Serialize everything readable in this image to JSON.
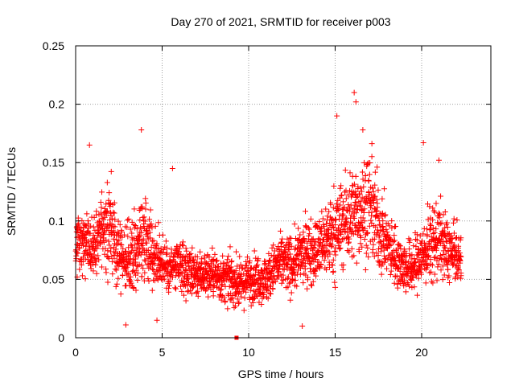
{
  "chart_data": {
    "type": "scatter",
    "title": "Day 270 of 2021, SRMTID for receiver p003",
    "xlabel": "GPS time / hours",
    "ylabel": "SRMTID / TECUs",
    "xlim": [
      0,
      24
    ],
    "ylim": [
      0,
      0.25
    ],
    "x_ticks": [
      0,
      5,
      10,
      15,
      20
    ],
    "x_tick_labels": [
      "0",
      "5",
      "10",
      "15",
      "20"
    ],
    "y_ticks": [
      0,
      0.05,
      0.1,
      0.15,
      0.2,
      0.25
    ],
    "y_tick_labels": [
      "0",
      "0.05",
      "0.1",
      "0.15",
      "0.2",
      "0.25"
    ],
    "grid": true,
    "marker": "plus",
    "color": "#ff0000",
    "outlier_marker": "square",
    "outlier_points": [
      [
        9.3,
        0.0
      ]
    ],
    "profile": {
      "x": [
        0.0,
        0.5,
        1.0,
        1.5,
        2.0,
        2.5,
        3.0,
        3.5,
        4.0,
        4.5,
        5.0,
        5.5,
        6.0,
        6.5,
        7.0,
        7.5,
        8.0,
        8.5,
        9.0,
        9.5,
        10.0,
        10.5,
        11.0,
        11.5,
        12.0,
        12.5,
        13.0,
        13.5,
        14.0,
        14.5,
        15.0,
        15.5,
        16.0,
        16.5,
        17.0,
        17.5,
        18.0,
        18.5,
        19.0,
        19.5,
        20.0,
        20.5,
        21.0,
        21.5,
        22.0,
        22.3
      ],
      "median": [
        0.08,
        0.085,
        0.08,
        0.09,
        0.095,
        0.075,
        0.065,
        0.075,
        0.09,
        0.07,
        0.065,
        0.06,
        0.06,
        0.058,
        0.055,
        0.055,
        0.055,
        0.05,
        0.05,
        0.045,
        0.05,
        0.052,
        0.05,
        0.06,
        0.065,
        0.062,
        0.07,
        0.075,
        0.075,
        0.085,
        0.09,
        0.1,
        0.105,
        0.11,
        0.115,
        0.095,
        0.08,
        0.07,
        0.06,
        0.06,
        0.07,
        0.08,
        0.085,
        0.075,
        0.07,
        0.065
      ],
      "spread": [
        0.02,
        0.025,
        0.025,
        0.03,
        0.035,
        0.025,
        0.025,
        0.03,
        0.035,
        0.025,
        0.022,
        0.02,
        0.02,
        0.02,
        0.018,
        0.018,
        0.018,
        0.018,
        0.018,
        0.018,
        0.018,
        0.018,
        0.018,
        0.02,
        0.022,
        0.022,
        0.022,
        0.025,
        0.025,
        0.03,
        0.035,
        0.035,
        0.035,
        0.038,
        0.04,
        0.035,
        0.025,
        0.022,
        0.02,
        0.022,
        0.025,
        0.03,
        0.03,
        0.025,
        0.02,
        0.02
      ]
    },
    "notable_points": [
      [
        16.1,
        0.21
      ],
      [
        16.2,
        0.202
      ],
      [
        15.1,
        0.19
      ],
      [
        16.6,
        0.178
      ],
      [
        3.8,
        0.178
      ],
      [
        20.1,
        0.167
      ],
      [
        0.8,
        0.165
      ],
      [
        21.0,
        0.152
      ],
      [
        5.6,
        0.145
      ],
      [
        2.9,
        0.011
      ],
      [
        13.1,
        0.01
      ],
      [
        4.7,
        0.015
      ]
    ],
    "generated_density": 6.5,
    "seed": 270
  }
}
